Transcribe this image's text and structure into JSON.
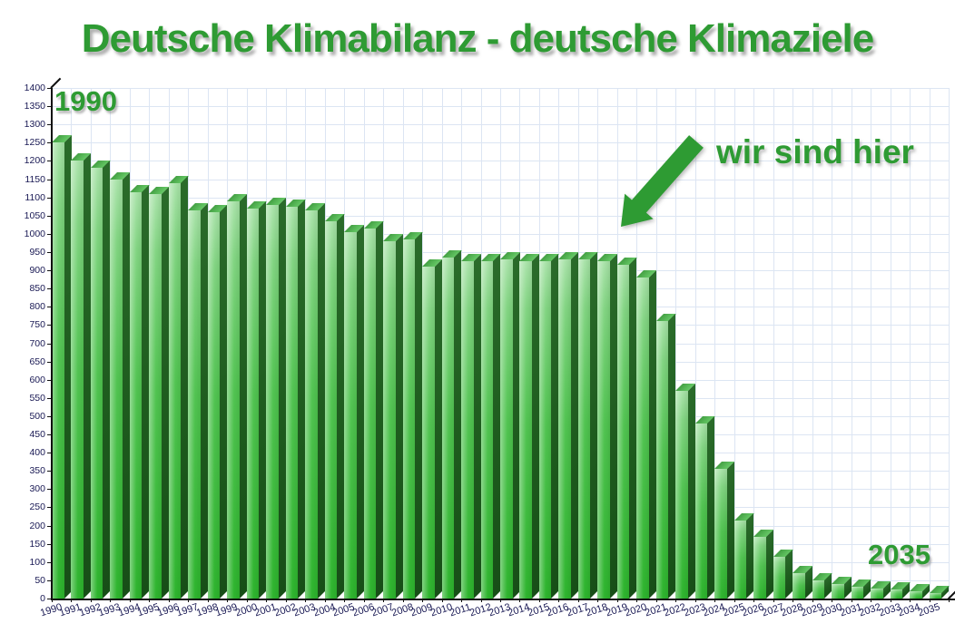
{
  "title": "Deutsche Klimabilanz - deutsche Klimaziele",
  "annotations": {
    "start_year_label": "1990",
    "end_year_label": "2035",
    "here_label": "wir sind hier"
  },
  "colors": {
    "accent_green": "#2e9b33",
    "bar_front_light": "#abe3ab",
    "bar_front_dark": "#2eb42e",
    "bar_side_dark": "#1d5a1d",
    "bar_top_face": "#4aa64a",
    "grid_line": "#dce5f3",
    "axis_text": "#191954",
    "axis_line": "#111111",
    "background": "#ffffff"
  },
  "y_axis": {
    "min": 0,
    "max": 1400,
    "tick_step": 50
  },
  "chart_data": {
    "type": "bar",
    "title": "Deutsche Klimabilanz - deutsche Klimaziele",
    "style": "3d-green-bars",
    "grid": true,
    "legend_position": "none",
    "ylim": [
      0,
      1400
    ],
    "ytick_step": 50,
    "categories": [
      "1990",
      "1991",
      "1992",
      "1993",
      "1994",
      "1995",
      "1996",
      "1997",
      "1998",
      "1999",
      "2000",
      "2001",
      "2002",
      "2003",
      "2004",
      "2005",
      "2006",
      "2007",
      "2008",
      "2009",
      "2010",
      "2011",
      "2012",
      "2013",
      "2014",
      "2015",
      "2016",
      "2017",
      "2018",
      "2019",
      "2020",
      "2021",
      "2022",
      "2023",
      "2024",
      "2025",
      "2026",
      "2027",
      "2028",
      "2029",
      "2030",
      "2031",
      "2032",
      "2033",
      "2034",
      "2035"
    ],
    "values": [
      1250,
      1200,
      1180,
      1150,
      1115,
      1110,
      1140,
      1065,
      1060,
      1090,
      1070,
      1080,
      1075,
      1065,
      1035,
      1005,
      1015,
      980,
      985,
      910,
      935,
      925,
      925,
      930,
      925,
      925,
      930,
      930,
      925,
      915,
      880,
      760,
      570,
      480,
      355,
      215,
      170,
      115,
      70,
      50,
      40,
      32,
      28,
      24,
      20,
      15
    ],
    "annotations": [
      "1990",
      "2035",
      "wir sind hier"
    ]
  }
}
